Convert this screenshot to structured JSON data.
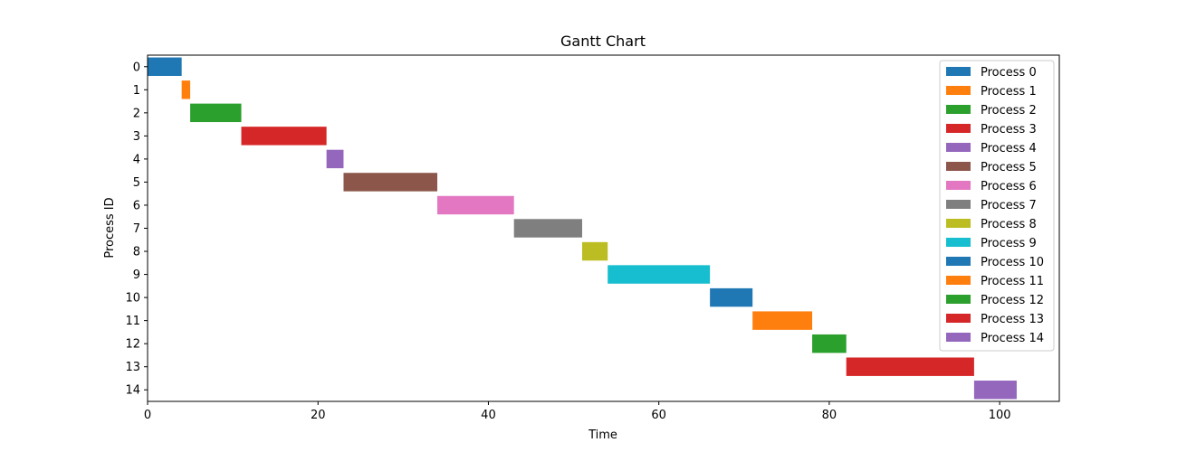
{
  "chart_data": {
    "type": "bar",
    "orientation": "horizontal",
    "title": "Gantt Chart",
    "xlabel": "Time",
    "ylabel": "Process ID",
    "xlim": [
      0,
      107
    ],
    "ylim": [
      -0.5,
      14.5
    ],
    "y_inverted": true,
    "xticks": [
      0,
      20,
      40,
      60,
      80,
      100
    ],
    "yticks": [
      0,
      1,
      2,
      3,
      4,
      5,
      6,
      7,
      8,
      9,
      10,
      11,
      12,
      13,
      14
    ],
    "grid": false,
    "legend_placement": "top-right",
    "series": [
      {
        "name": "Process 0",
        "y": 0,
        "start": 0,
        "end": 4,
        "color": "#1f77b4"
      },
      {
        "name": "Process 1",
        "y": 1,
        "start": 4,
        "end": 5,
        "color": "#ff7f0e"
      },
      {
        "name": "Process 2",
        "y": 2,
        "start": 5,
        "end": 11,
        "color": "#2ca02c"
      },
      {
        "name": "Process 3",
        "y": 3,
        "start": 11,
        "end": 21,
        "color": "#d62728"
      },
      {
        "name": "Process 4",
        "y": 4,
        "start": 21,
        "end": 23,
        "color": "#9467bd"
      },
      {
        "name": "Process 5",
        "y": 5,
        "start": 23,
        "end": 34,
        "color": "#8c564b"
      },
      {
        "name": "Process 6",
        "y": 6,
        "start": 34,
        "end": 43,
        "color": "#e377c2"
      },
      {
        "name": "Process 7",
        "y": 7,
        "start": 43,
        "end": 51,
        "color": "#7f7f7f"
      },
      {
        "name": "Process 8",
        "y": 8,
        "start": 51,
        "end": 54,
        "color": "#bcbd22"
      },
      {
        "name": "Process 9",
        "y": 9,
        "start": 54,
        "end": 66,
        "color": "#17becf"
      },
      {
        "name": "Process 10",
        "y": 10,
        "start": 66,
        "end": 71,
        "color": "#1f77b4"
      },
      {
        "name": "Process 11",
        "y": 11,
        "start": 71,
        "end": 78,
        "color": "#ff7f0e"
      },
      {
        "name": "Process 12",
        "y": 12,
        "start": 78,
        "end": 82,
        "color": "#2ca02c"
      },
      {
        "name": "Process 13",
        "y": 13,
        "start": 82,
        "end": 97,
        "color": "#d62728"
      },
      {
        "name": "Process 14",
        "y": 14,
        "start": 97,
        "end": 102,
        "color": "#9467bd"
      }
    ]
  }
}
